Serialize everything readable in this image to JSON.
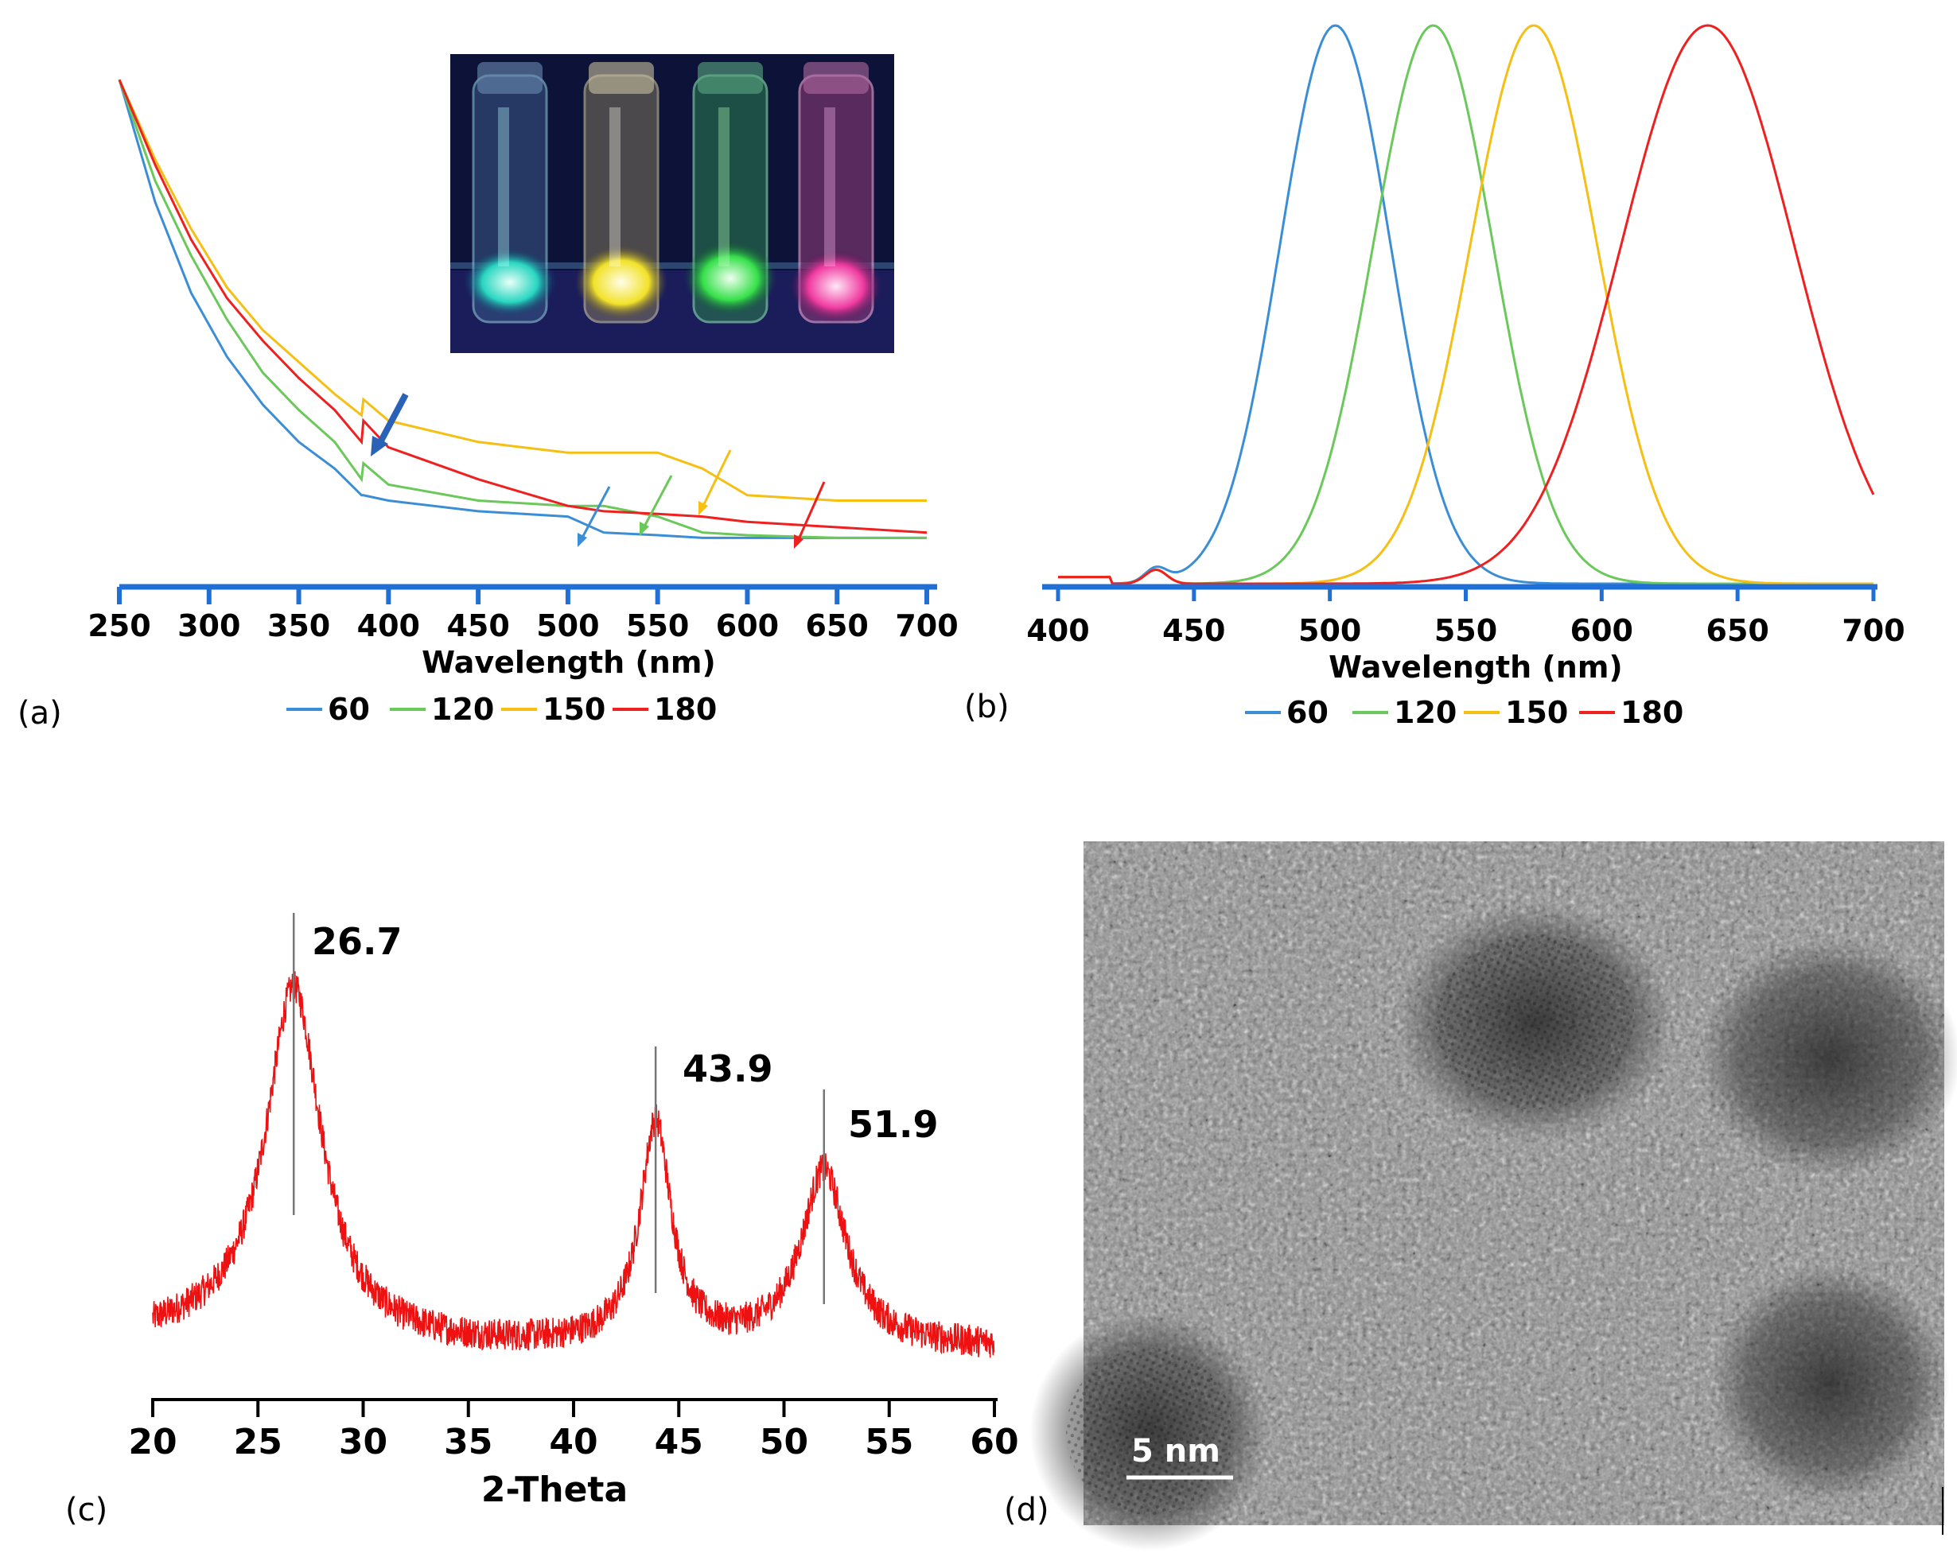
{
  "colors": {
    "series": [
      "#3b8ed6",
      "#6bc85a",
      "#f5bf14",
      "#ee2020"
    ],
    "axis": "#1f6fd6",
    "xrd": "#ee1111"
  },
  "chart_data": [
    {
      "id": "a",
      "type": "line",
      "panel_label": "(a)",
      "xlabel": "Wavelength (nm)",
      "ylabel": "",
      "xlim": [
        250,
        700
      ],
      "ylim": [
        0,
        1
      ],
      "x_ticks": [
        "250",
        "300",
        "350",
        "400",
        "450",
        "500",
        "550",
        "600",
        "650",
        "700"
      ],
      "legend": [
        "60",
        "120",
        "150",
        "180"
      ],
      "x": [
        250,
        270,
        290,
        310,
        330,
        350,
        370,
        385,
        386,
        400,
        450,
        500,
        520,
        550,
        575,
        600,
        650,
        700
      ],
      "series": [
        {
          "name": "60",
          "values": [
            0.94,
            0.71,
            0.54,
            0.42,
            0.33,
            0.26,
            0.21,
            0.16,
            0.16,
            0.15,
            0.13,
            0.12,
            0.09,
            0.085,
            0.08,
            0.08,
            0.08,
            0.08
          ]
        },
        {
          "name": "120",
          "values": [
            0.94,
            0.75,
            0.61,
            0.49,
            0.39,
            0.32,
            0.26,
            0.19,
            0.22,
            0.18,
            0.15,
            0.14,
            0.14,
            0.12,
            0.09,
            0.085,
            0.08,
            0.08
          ]
        },
        {
          "name": "150",
          "values": [
            0.94,
            0.79,
            0.66,
            0.55,
            0.47,
            0.41,
            0.35,
            0.31,
            0.34,
            0.3,
            0.26,
            0.24,
            0.24,
            0.24,
            0.21,
            0.16,
            0.15,
            0.15
          ]
        },
        {
          "name": "180",
          "values": [
            0.94,
            0.78,
            0.64,
            0.53,
            0.45,
            0.38,
            0.32,
            0.26,
            0.3,
            0.25,
            0.19,
            0.14,
            0.13,
            0.125,
            0.12,
            0.11,
            0.1,
            0.09
          ]
        }
      ],
      "annotations": [
        "arrows marking absorption features near 390, 510, 540, 570, 630 nm",
        "inset photograph of four vials under UV light"
      ]
    },
    {
      "id": "b",
      "type": "line",
      "panel_label": "(b)",
      "xlabel": "Wavelength (nm)",
      "ylabel": "",
      "xlim": [
        400,
        700
      ],
      "ylim": [
        0,
        1
      ],
      "x_ticks": [
        "400",
        "450",
        "500",
        "550",
        "600",
        "650",
        "700"
      ],
      "legend": [
        "60",
        "120",
        "150",
        "180"
      ],
      "series": [
        {
          "name": "60",
          "peak": 502,
          "fwhm": 48,
          "end_value": 0.0
        },
        {
          "name": "120",
          "peak": 538,
          "fwhm": 52,
          "end_value": 0.0
        },
        {
          "name": "150",
          "peak": 575,
          "fwhm": 55,
          "end_value": 0.0
        },
        {
          "name": "180",
          "peak": 639,
          "fwhm": 75,
          "end_value": 0.15
        }
      ]
    },
    {
      "id": "c",
      "type": "line",
      "panel_label": "(c)",
      "xlabel": "2-Theta",
      "ylabel": "",
      "xlim": [
        20,
        60
      ],
      "ylim": [
        0,
        1
      ],
      "x_ticks": [
        "20",
        "25",
        "30",
        "35",
        "40",
        "45",
        "50",
        "55",
        "60"
      ],
      "peaks": [
        {
          "x": 26.7,
          "label": "26.7",
          "height": 0.88
        },
        {
          "x": 43.9,
          "label": "43.9",
          "height": 0.6
        },
        {
          "x": 51.9,
          "label": "51.9",
          "height": 0.5
        }
      ],
      "series": [
        {
          "name": "XRD",
          "values": []
        }
      ]
    }
  ],
  "panel_d": {
    "panel_label": "(d)",
    "scale_bar": "5 nm"
  }
}
